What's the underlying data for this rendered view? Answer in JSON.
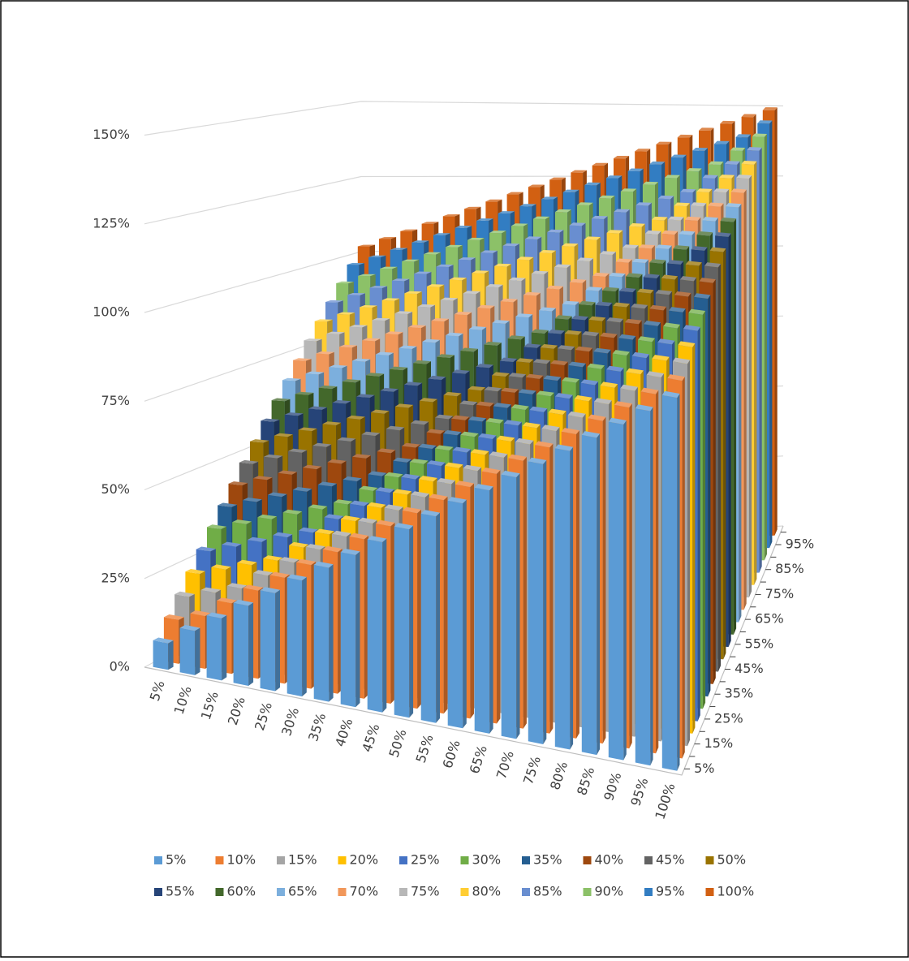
{
  "chart_data": {
    "type": "bar3d",
    "categories": [
      "5%",
      "10%",
      "15%",
      "20%",
      "25%",
      "30%",
      "35%",
      "40%",
      "45%",
      "50%",
      "55%",
      "60%",
      "65%",
      "70%",
      "75%",
      "80%",
      "85%",
      "90%",
      "95%",
      "100%"
    ],
    "ylim": [
      0,
      150
    ],
    "yticks": [
      {
        "value": 0,
        "label": "0%"
      },
      {
        "value": 25,
        "label": "25%"
      },
      {
        "value": 50,
        "label": "50%"
      },
      {
        "value": 75,
        "label": "75%"
      },
      {
        "value": 100,
        "label": "100%"
      },
      {
        "value": 125,
        "label": "125%"
      },
      {
        "value": 150,
        "label": "150%"
      }
    ],
    "grid": true,
    "series": [
      {
        "name": "5%",
        "color": "#5b9bd5",
        "values": [
          7.5,
          12.5,
          17.5,
          22.5,
          27.5,
          32.5,
          37.5,
          42.5,
          47.5,
          52.5,
          57.5,
          62.5,
          67.5,
          72.5,
          77.5,
          82.5,
          87.5,
          92.5,
          97.5,
          102.5
        ]
      },
      {
        "name": "10%",
        "color": "#ed7d31",
        "values": [
          12.5,
          15,
          20,
          25,
          30,
          35,
          40,
          45,
          50,
          55,
          60,
          65,
          70,
          75,
          80,
          85,
          90,
          95,
          100,
          105
        ]
      },
      {
        "name": "15%",
        "color": "#a5a5a5",
        "values": [
          17.5,
          20,
          22.5,
          27.5,
          32.5,
          37.5,
          42.5,
          47.5,
          52.5,
          57.5,
          62.5,
          67.5,
          72.5,
          77.5,
          82.5,
          87.5,
          92.5,
          97.5,
          102.5,
          107.5
        ]
      },
      {
        "name": "20%",
        "color": "#ffc000",
        "values": [
          22.5,
          25,
          27.5,
          30,
          35,
          40,
          45,
          50,
          55,
          60,
          65,
          70,
          75,
          80,
          85,
          90,
          95,
          100,
          105,
          110
        ]
      },
      {
        "name": "25%",
        "color": "#4472c4",
        "values": [
          27.5,
          30,
          32.5,
          35,
          37.5,
          42.5,
          47.5,
          52.5,
          57.5,
          62.5,
          67.5,
          72.5,
          77.5,
          82.5,
          87.5,
          92.5,
          97.5,
          102.5,
          107.5,
          112.5
        ]
      },
      {
        "name": "30%",
        "color": "#70ad47",
        "values": [
          32.5,
          35,
          37.5,
          40,
          42.5,
          45,
          50,
          55,
          60,
          65,
          70,
          75,
          80,
          85,
          90,
          95,
          100,
          105,
          110,
          115
        ]
      },
      {
        "name": "35%",
        "color": "#255e91",
        "values": [
          37.5,
          40,
          42.5,
          45,
          47.5,
          50,
          52.5,
          57.5,
          62.5,
          67.5,
          72.5,
          77.5,
          82.5,
          87.5,
          92.5,
          97.5,
          102.5,
          107.5,
          112.5,
          117.5
        ]
      },
      {
        "name": "40%",
        "color": "#9e480e",
        "values": [
          42.5,
          45,
          47.5,
          50,
          52.5,
          55,
          57.5,
          60,
          65,
          70,
          75,
          80,
          85,
          90,
          95,
          100,
          105,
          110,
          115,
          120
        ]
      },
      {
        "name": "45%",
        "color": "#636363",
        "values": [
          47.5,
          50,
          52.5,
          55,
          57.5,
          60,
          62.5,
          65,
          67.5,
          72.5,
          77.5,
          82.5,
          87.5,
          92.5,
          97.5,
          102.5,
          107.5,
          112.5,
          117.5,
          122.5
        ]
      },
      {
        "name": "50%",
        "color": "#997300",
        "values": [
          52.5,
          55,
          57.5,
          60,
          62.5,
          65,
          67.5,
          70,
          72.5,
          75,
          80,
          85,
          90,
          95,
          100,
          105,
          110,
          115,
          120,
          125
        ]
      },
      {
        "name": "55%",
        "color": "#264478",
        "values": [
          57.5,
          60,
          62.5,
          65,
          67.5,
          70,
          72.5,
          75,
          77.5,
          80,
          82.5,
          87.5,
          92.5,
          97.5,
          102.5,
          107.5,
          112.5,
          117.5,
          122.5,
          127.5
        ]
      },
      {
        "name": "60%",
        "color": "#43682b",
        "values": [
          62.5,
          65,
          67.5,
          70,
          72.5,
          75,
          77.5,
          80,
          82.5,
          85,
          87.5,
          90,
          95,
          100,
          105,
          110,
          115,
          120,
          125,
          130
        ]
      },
      {
        "name": "65%",
        "color": "#7cafdd",
        "values": [
          67.5,
          70,
          72.5,
          75,
          77.5,
          80,
          82.5,
          85,
          87.5,
          90,
          92.5,
          95,
          97.5,
          102.5,
          107.5,
          112.5,
          117.5,
          122.5,
          127.5,
          132.5
        ]
      },
      {
        "name": "70%",
        "color": "#f1975a",
        "values": [
          72.5,
          75,
          77.5,
          80,
          82.5,
          85,
          87.5,
          90,
          92.5,
          95,
          97.5,
          100,
          102.5,
          105,
          110,
          115,
          120,
          125,
          130,
          135
        ]
      },
      {
        "name": "75%",
        "color": "#b7b7b7",
        "values": [
          77.5,
          80,
          82.5,
          85,
          87.5,
          90,
          92.5,
          95,
          97.5,
          100,
          102.5,
          105,
          107.5,
          110,
          112.5,
          117.5,
          122.5,
          127.5,
          132.5,
          137.5
        ]
      },
      {
        "name": "80%",
        "color": "#ffcd33",
        "values": [
          82.5,
          85,
          87.5,
          90,
          92.5,
          95,
          97.5,
          100,
          102.5,
          105,
          107.5,
          110,
          112.5,
          115,
          117.5,
          120,
          125,
          130,
          135,
          140
        ]
      },
      {
        "name": "85%",
        "color": "#698ed0",
        "values": [
          87.5,
          90,
          92.5,
          95,
          97.5,
          100,
          102.5,
          105,
          107.5,
          110,
          112.5,
          115,
          117.5,
          120,
          122.5,
          125,
          127.5,
          132.5,
          137.5,
          142.5
        ]
      },
      {
        "name": "90%",
        "color": "#8cc168",
        "values": [
          92.5,
          95,
          97.5,
          100,
          102.5,
          105,
          107.5,
          110,
          112.5,
          115,
          117.5,
          120,
          122.5,
          125,
          127.5,
          130,
          132.5,
          135,
          140,
          145
        ]
      },
      {
        "name": "95%",
        "color": "#327dc2",
        "values": [
          97.5,
          100,
          102.5,
          105,
          107.5,
          110,
          112.5,
          115,
          117.5,
          120,
          122.5,
          125,
          127.5,
          130,
          132.5,
          135,
          137.5,
          140,
          142.5,
          147.5
        ]
      },
      {
        "name": "100%",
        "color": "#d26012",
        "values": [
          102.5,
          105,
          107.5,
          110,
          112.5,
          115,
          117.5,
          120,
          122.5,
          125,
          127.5,
          130,
          132.5,
          135,
          137.5,
          140,
          142.5,
          145,
          147.5,
          150
        ]
      }
    ]
  }
}
